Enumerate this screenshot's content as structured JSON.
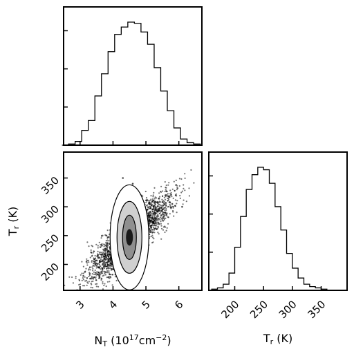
{
  "chart_data": [
    {
      "type": "histogram",
      "panel": "N_T marginal",
      "x": [
        2.55,
        2.75,
        2.95,
        3.15,
        3.35,
        3.55,
        3.75,
        3.95,
        4.15,
        4.35,
        4.55,
        4.75,
        4.95,
        5.15,
        5.35,
        5.55,
        5.75,
        5.95,
        6.15,
        6.35,
        6.55
      ],
      "counts": [
        0,
        0.01,
        0.03,
        0.12,
        0.2,
        0.4,
        0.58,
        0.76,
        0.9,
        0.96,
        1.0,
        0.99,
        0.92,
        0.82,
        0.63,
        0.44,
        0.28,
        0.14,
        0.05,
        0.02,
        0.01
      ],
      "y_ticks_labeled": false
    },
    {
      "type": "scatter",
      "panel": "T_r vs N_T joint",
      "xlabel": "N$_T$ (10$^{17}$cm$^{-2}$)",
      "ylabel": "T$_r$ (K)",
      "xlim": [
        2.5,
        6.7
      ],
      "ylim": [
        155,
        395
      ],
      "x_ticks": [
        3,
        4,
        5,
        6
      ],
      "y_ticks": [
        200,
        250,
        300,
        350
      ],
      "x": [
        4.5,
        4.45,
        4.6,
        4.3,
        4.8,
        4.1,
        5.0,
        3.9,
        5.2,
        3.6,
        5.5,
        3.3,
        5.8,
        4.4,
        4.7,
        4.2,
        4.9,
        3.8,
        5.4,
        3.1,
        6.1,
        4.6,
        4.3
      ],
      "y": [
        248,
        245,
        255,
        238,
        262,
        228,
        272,
        218,
        282,
        205,
        295,
        195,
        305,
        290,
        310,
        205,
        230,
        250,
        270,
        180,
        300,
        340,
        350
      ],
      "contours": 3,
      "peak": [
        4.5,
        247
      ],
      "slope": 50
    },
    {
      "type": "histogram",
      "panel": "T_r marginal",
      "xlabel": "T$_r$ (K)",
      "xlim": [
        155,
        395
      ],
      "x_ticks": [
        200,
        250,
        300,
        350
      ],
      "x": [
        165,
        175,
        185,
        195,
        205,
        215,
        225,
        235,
        245,
        255,
        265,
        275,
        285,
        295,
        305,
        315,
        325,
        335,
        345,
        355,
        365,
        375
      ],
      "counts": [
        0.01,
        0.02,
        0.05,
        0.14,
        0.35,
        0.6,
        0.82,
        0.94,
        1.0,
        0.98,
        0.87,
        0.68,
        0.49,
        0.3,
        0.18,
        0.1,
        0.05,
        0.03,
        0.02,
        0.01,
        0.0,
        0.0
      ],
      "y_ticks_labeled": false
    }
  ],
  "labels": {
    "nt_axis": "N$_T$ (10$^{17}$cm$^{-2}$)",
    "tr_axis": "T$_r$ (K)"
  }
}
